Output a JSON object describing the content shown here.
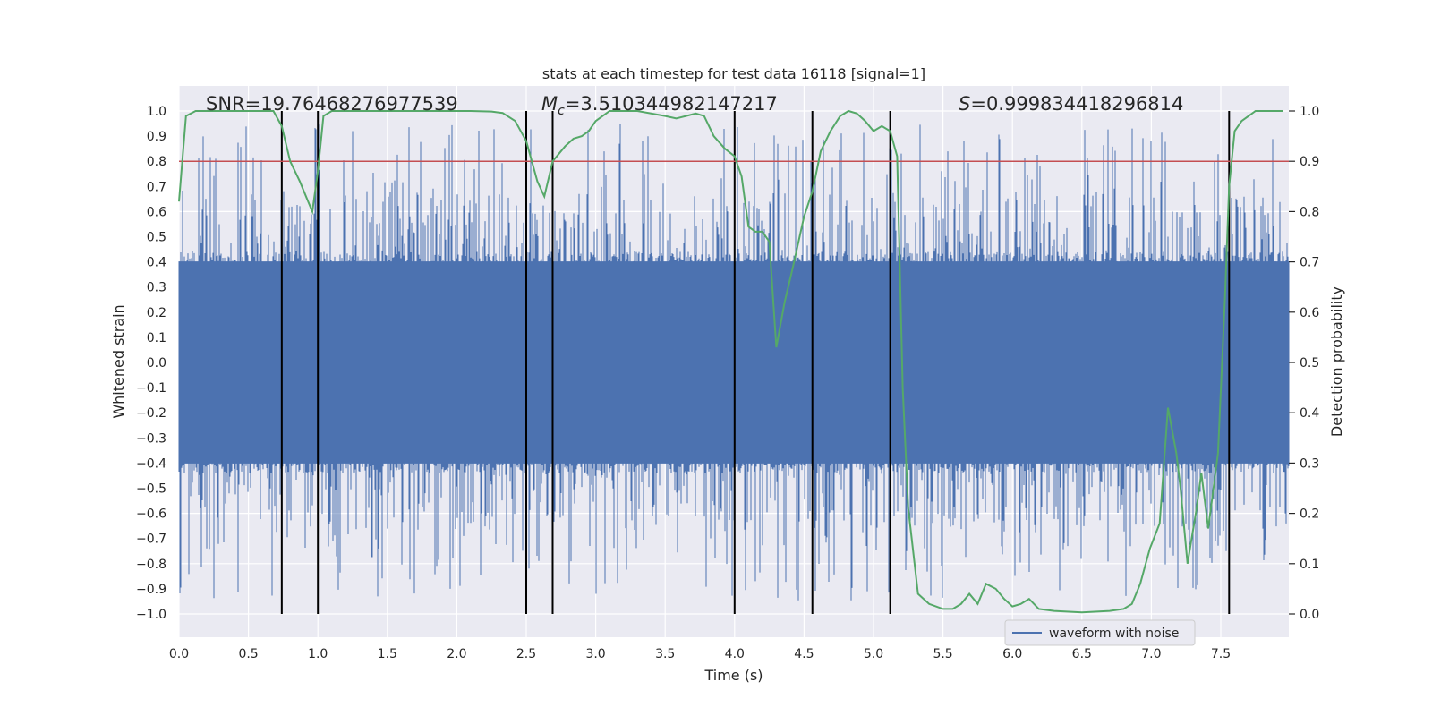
{
  "chart_data": {
    "type": "line",
    "title": "stats at each timestep for test data 16118 [signal=1]",
    "xlabel": "Time (s)",
    "ylabel": "Whitened strain",
    "y2label": "Detection probability",
    "xlim": [
      0.0,
      8.0
    ],
    "ylim": [
      -1.1,
      1.1
    ],
    "y2lim": [
      0.0,
      1.0
    ],
    "x_ticks": [
      "0.0",
      "0.5",
      "1.0",
      "1.5",
      "2.0",
      "2.5",
      "3.0",
      "3.5",
      "4.0",
      "4.5",
      "5.0",
      "5.5",
      "6.0",
      "6.5",
      "7.0",
      "7.5"
    ],
    "y_ticks": [
      "1.0",
      "0.9",
      "0.8",
      "0.7",
      "0.6",
      "0.5",
      "0.4",
      "0.3",
      "0.2",
      "0.1",
      "0.0",
      "−0.1",
      "−0.2",
      "−0.3",
      "−0.4",
      "−0.5",
      "−0.6",
      "−0.7",
      "−0.8",
      "−0.9",
      "−1.0"
    ],
    "y2_ticks": [
      "1.0",
      "0.9",
      "0.8",
      "0.7",
      "0.6",
      "0.5",
      "0.4",
      "0.3",
      "0.2",
      "0.1",
      "0.0"
    ],
    "annotations": {
      "snr": "SNR=19.76468276977539",
      "mc_symbol": "M",
      "mc_sub": "c",
      "mc_value": "=3.510344982147217",
      "s_symbol": "S",
      "s_value": "=0.999834418296814"
    },
    "threshold": {
      "y2": 0.9,
      "color": "#c44e52"
    },
    "event_lines_x": [
      0.74,
      1.0,
      2.5,
      2.69,
      4.0,
      4.56,
      5.12,
      7.56
    ],
    "legend": {
      "label": "waveform with noise",
      "placement": "lower-right"
    },
    "series": [
      {
        "name": "waveform with noise",
        "axis": "left",
        "color": "#4c72b0",
        "style": "dense noise",
        "typical_amplitude": 0.4,
        "peak_amplitude": 0.95
      },
      {
        "name": "detection probability",
        "axis": "right",
        "color": "#55a868",
        "x": [
          0.0,
          0.05,
          0.12,
          0.25,
          0.5,
          0.68,
          0.74,
          0.8,
          0.87,
          0.93,
          0.96,
          1.0,
          1.04,
          1.1,
          1.18,
          1.35,
          1.6,
          1.9,
          2.1,
          2.25,
          2.33,
          2.42,
          2.5,
          2.58,
          2.63,
          2.69,
          2.78,
          2.84,
          2.9,
          2.95,
          3.0,
          3.1,
          3.3,
          3.5,
          3.58,
          3.65,
          3.72,
          3.78,
          3.85,
          3.93,
          4.0,
          4.05,
          4.1,
          4.15,
          4.2,
          4.25,
          4.3,
          4.36,
          4.42,
          4.5,
          4.56,
          4.62,
          4.69,
          4.76,
          4.82,
          4.88,
          4.94,
          5.0,
          5.06,
          5.12,
          5.17,
          5.21,
          5.25,
          5.32,
          5.4,
          5.5,
          5.57,
          5.63,
          5.69,
          5.75,
          5.81,
          5.88,
          5.94,
          6.0,
          6.06,
          6.12,
          6.19,
          6.3,
          6.5,
          6.7,
          6.8,
          6.86,
          6.92,
          6.95,
          6.99,
          7.06,
          7.12,
          7.18,
          7.21,
          7.26,
          7.32,
          7.36,
          7.41,
          7.48,
          7.53,
          7.56,
          7.6,
          7.65,
          7.75,
          7.95
        ],
        "values": [
          0.82,
          0.99,
          1.0,
          1.0,
          1.0,
          1.0,
          0.97,
          0.9,
          0.86,
          0.82,
          0.8,
          0.88,
          0.99,
          1.0,
          1.0,
          1.0,
          1.0,
          1.0,
          1.0,
          0.999,
          0.996,
          0.98,
          0.94,
          0.86,
          0.83,
          0.9,
          0.93,
          0.945,
          0.95,
          0.96,
          0.98,
          1.0,
          1.0,
          0.99,
          0.985,
          0.99,
          0.995,
          0.99,
          0.95,
          0.925,
          0.91,
          0.87,
          0.77,
          0.76,
          0.76,
          0.74,
          0.53,
          0.62,
          0.69,
          0.79,
          0.84,
          0.92,
          0.96,
          0.99,
          1.0,
          0.995,
          0.98,
          0.96,
          0.97,
          0.96,
          0.91,
          0.45,
          0.21,
          0.04,
          0.02,
          0.01,
          0.01,
          0.02,
          0.04,
          0.02,
          0.06,
          0.05,
          0.03,
          0.015,
          0.02,
          0.03,
          0.01,
          0.006,
          0.003,
          0.006,
          0.01,
          0.02,
          0.06,
          0.09,
          0.13,
          0.18,
          0.41,
          0.32,
          0.25,
          0.1,
          0.2,
          0.28,
          0.17,
          0.32,
          0.63,
          0.85,
          0.96,
          0.98,
          1.0,
          1.0
        ]
      }
    ]
  }
}
